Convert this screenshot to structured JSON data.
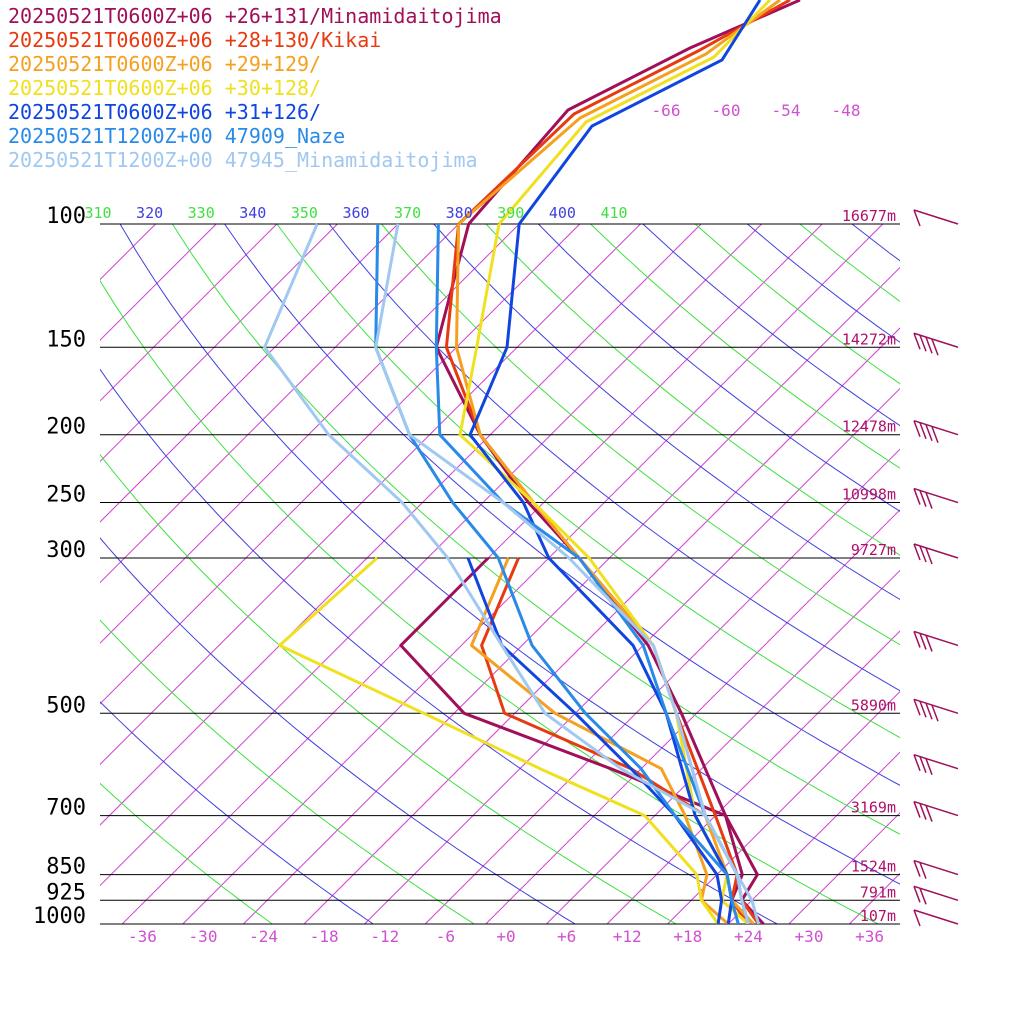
{
  "legend": [
    {
      "text": "20250521T0600Z+06 +26+131/Minamidaitojima",
      "color": "#a0105a"
    },
    {
      "text": "20250521T0600Z+06 +28+130/Kikai",
      "color": "#e83a10"
    },
    {
      "text": "20250521T0600Z+06 +29+129/",
      "color": "#f5a020"
    },
    {
      "text": "20250521T0600Z+06 +30+128/",
      "color": "#f0e020"
    },
    {
      "text": "20250521T0600Z+06 +31+126/",
      "color": "#1045e0"
    },
    {
      "text": "20250521T1200Z+00 47909_Naze",
      "color": "#2a8ae8"
    },
    {
      "text": "20250521T1200Z+00 47945_Minamidaitojima",
      "color": "#a0c8f0"
    }
  ],
  "chart_data": {
    "type": "line",
    "title": "",
    "pressure_levels": [
      {
        "p": 100,
        "label": "100",
        "height": "16677m"
      },
      {
        "p": 150,
        "label": "150",
        "height": "14272m"
      },
      {
        "p": 200,
        "label": "200",
        "height": "12478m"
      },
      {
        "p": 250,
        "label": "250",
        "height": "10998m"
      },
      {
        "p": 300,
        "label": "300",
        "height": "9727m"
      },
      {
        "p": 500,
        "label": "500",
        "height": "5890m"
      },
      {
        "p": 700,
        "label": "700",
        "height": "3169m"
      },
      {
        "p": 850,
        "label": "850",
        "height": "1524m"
      },
      {
        "p": 925,
        "label": "925",
        "height": "791m"
      },
      {
        "p": 1000,
        "label": "1000",
        "height": "107m"
      }
    ],
    "temperature_ticks": [
      "-36",
      "-30",
      "-24",
      "-18",
      "-12",
      "-6",
      "+0",
      "+6",
      "+12",
      "+18",
      "+24",
      "+30",
      "+36"
    ],
    "temperature_tick_values": [
      -36,
      -30,
      -24,
      -18,
      -12,
      -6,
      0,
      6,
      12,
      18,
      24,
      30,
      36
    ],
    "upper_temperature_labels": [
      "-66",
      "-60",
      "-54",
      "-48"
    ],
    "theta_labels": [
      {
        "text": "310",
        "color": "#40e040"
      },
      {
        "text": "320",
        "color": "#4040e0"
      },
      {
        "text": "330",
        "color": "#40e040"
      },
      {
        "text": "340",
        "color": "#4040e0"
      },
      {
        "text": "350",
        "color": "#40e040"
      },
      {
        "text": "360",
        "color": "#4040e0"
      },
      {
        "text": "370",
        "color": "#40e040"
      },
      {
        "text": "380",
        "color": "#4040e0"
      },
      {
        "text": "390",
        "color": "#40e040"
      },
      {
        "text": "400",
        "color": "#4040e0"
      },
      {
        "text": "410",
        "color": "#40e040"
      }
    ],
    "xlim": [
      -40,
      40
    ],
    "ylim": [
      1000,
      100
    ],
    "series": [
      {
        "name": "20250521T0600Z+06 +26+131/Minamidaitojima",
        "color": "#a0105a",
        "temperature": [
          [
            1000,
            25.5
          ],
          [
            925,
            21
          ],
          [
            850,
            20
          ],
          [
            700,
            11
          ],
          [
            500,
            -3.5
          ],
          [
            400,
            -13.5
          ],
          [
            300,
            -29
          ],
          [
            250,
            -39.5
          ],
          [
            200,
            -51
          ],
          [
            150,
            -64
          ],
          [
            100,
            -73
          ]
        ],
        "dewpoint": [
          [
            1000,
            24
          ],
          [
            925,
            20
          ],
          [
            850,
            18.5
          ],
          [
            700,
            11
          ],
          [
            600,
            -5
          ],
          [
            500,
            -25
          ],
          [
            400,
            -38
          ],
          [
            330,
            -38
          ],
          [
            300,
            -38
          ]
        ]
      },
      {
        "name": "20250521T0600Z+06 +28+130/Kikai",
        "color": "#e83a10",
        "temperature": [
          [
            1000,
            25
          ],
          [
            925,
            21
          ],
          [
            850,
            18
          ],
          [
            700,
            10
          ],
          [
            500,
            -4
          ],
          [
            400,
            -13
          ],
          [
            300,
            -29
          ],
          [
            250,
            -39
          ],
          [
            200,
            -51
          ],
          [
            150,
            -63
          ],
          [
            100,
            -74
          ]
        ],
        "dewpoint": [
          [
            1000,
            24
          ],
          [
            925,
            20
          ],
          [
            850,
            18
          ],
          [
            700,
            9
          ],
          [
            600,
            -3
          ],
          [
            500,
            -21
          ],
          [
            400,
            -30
          ],
          [
            300,
            -35
          ]
        ]
      },
      {
        "name": "20250521T0600Z+06 +29+129/",
        "color": "#f5a020",
        "temperature": [
          [
            1000,
            24.5
          ],
          [
            925,
            20
          ],
          [
            850,
            17
          ],
          [
            700,
            9
          ],
          [
            500,
            -4
          ],
          [
            400,
            -13
          ],
          [
            300,
            -29
          ],
          [
            250,
            -39
          ],
          [
            200,
            -51
          ],
          [
            150,
            -62
          ],
          [
            100,
            -74
          ]
        ],
        "dewpoint": [
          [
            1000,
            22
          ],
          [
            925,
            17
          ],
          [
            850,
            15
          ],
          [
            700,
            7
          ],
          [
            600,
            0
          ],
          [
            500,
            -16
          ],
          [
            400,
            -31
          ],
          [
            300,
            -36
          ]
        ]
      },
      {
        "name": "20250521T0600Z+06 +30+128/",
        "color": "#f0e020",
        "temperature": [
          [
            1000,
            24
          ],
          [
            925,
            19
          ],
          [
            850,
            17
          ],
          [
            700,
            8
          ],
          [
            500,
            -4
          ],
          [
            400,
            -13
          ],
          [
            300,
            -28
          ],
          [
            250,
            -39
          ],
          [
            200,
            -53
          ],
          [
            150,
            -60
          ],
          [
            100,
            -70
          ]
        ],
        "dewpoint": [
          [
            1000,
            21
          ],
          [
            925,
            17
          ],
          [
            850,
            14
          ],
          [
            700,
            3
          ],
          [
            600,
            -12
          ],
          [
            500,
            -29
          ],
          [
            400,
            -50
          ],
          [
            300,
            -49
          ]
        ]
      },
      {
        "name": "20250521T0600Z+06 +31+126/",
        "color": "#1045e0",
        "temperature": [
          [
            1000,
            22
          ],
          [
            925,
            20
          ],
          [
            850,
            17
          ],
          [
            700,
            8
          ],
          [
            500,
            -5
          ],
          [
            400,
            -15
          ],
          [
            300,
            -32
          ],
          [
            250,
            -40
          ],
          [
            200,
            -52
          ],
          [
            150,
            -57
          ],
          [
            100,
            -68
          ]
        ],
        "dewpoint": [
          [
            1000,
            21
          ],
          [
            925,
            19
          ],
          [
            850,
            16
          ],
          [
            700,
            6
          ],
          [
            600,
            -3
          ],
          [
            500,
            -14
          ],
          [
            400,
            -28
          ],
          [
            300,
            -40
          ]
        ]
      },
      {
        "name": "20250521T1200Z+00 47909_Naze",
        "color": "#2a8ae8",
        "temperature": [
          [
            1000,
            24
          ],
          [
            925,
            21
          ],
          [
            850,
            18
          ],
          [
            700,
            9
          ],
          [
            500,
            -5
          ],
          [
            400,
            -14
          ],
          [
            300,
            -29
          ],
          [
            250,
            -42
          ],
          [
            200,
            -55
          ],
          [
            150,
            -64
          ],
          [
            100,
            -76
          ]
        ],
        "dewpoint": [
          [
            1000,
            23
          ],
          [
            925,
            20
          ],
          [
            850,
            17
          ],
          [
            700,
            6
          ],
          [
            600,
            -2
          ],
          [
            500,
            -13
          ],
          [
            400,
            -25
          ],
          [
            300,
            -37
          ],
          [
            250,
            -47
          ],
          [
            200,
            -58
          ],
          [
            150,
            -70
          ],
          [
            100,
            -82
          ]
        ]
      },
      {
        "name": "20250521T1200Z+00 47945_Minamidaitojima",
        "color": "#a0c8f0",
        "temperature": [
          [
            1000,
            25
          ],
          [
            925,
            22
          ],
          [
            850,
            18
          ],
          [
            700,
            9
          ],
          [
            500,
            -4
          ],
          [
            400,
            -13
          ],
          [
            300,
            -30
          ],
          [
            250,
            -42
          ],
          [
            200,
            -58
          ],
          [
            150,
            -70
          ],
          [
            100,
            -80
          ]
        ],
        "dewpoint": [
          [
            1000,
            24
          ],
          [
            925,
            21
          ],
          [
            850,
            18
          ],
          [
            700,
            9
          ],
          [
            600,
            -4
          ],
          [
            500,
            -17
          ],
          [
            400,
            -28
          ],
          [
            300,
            -42
          ],
          [
            250,
            -52
          ],
          [
            200,
            -66
          ],
          [
            150,
            -81
          ],
          [
            100,
            -88
          ]
        ]
      }
    ],
    "wind_barbs": [
      {
        "p": 1000,
        "speed_kt": 10
      },
      {
        "p": 925,
        "speed_kt": 15
      },
      {
        "p": 850,
        "speed_kt": 20
      },
      {
        "p": 700,
        "speed_kt": 25
      },
      {
        "p": 600,
        "speed_kt": 30
      },
      {
        "p": 500,
        "speed_kt": 35
      },
      {
        "p": 400,
        "speed_kt": 30
      },
      {
        "p": 300,
        "speed_kt": 25
      },
      {
        "p": 250,
        "speed_kt": 25
      },
      {
        "p": 200,
        "speed_kt": 35
      },
      {
        "p": 150,
        "speed_kt": 35
      },
      {
        "p": 100,
        "speed_kt": 10
      }
    ]
  }
}
